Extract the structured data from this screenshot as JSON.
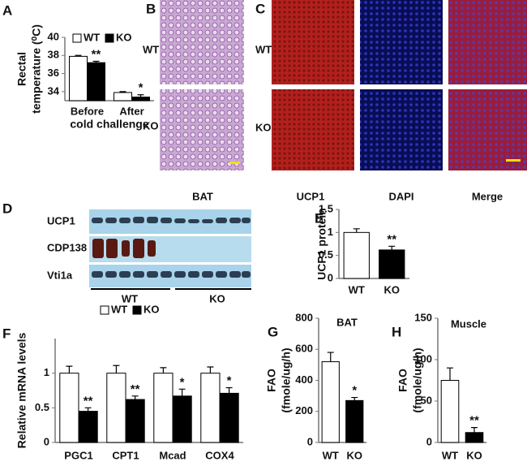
{
  "chart_data": [
    {
      "type": "bar",
      "panel_label": "A",
      "y_label": [
        "Rectal",
        "temperature (⁰C)"
      ],
      "x_label": "cold challenge",
      "categories": [
        "Before",
        "After"
      ],
      "series": [
        {
          "name": "WT",
          "color": "#ffffff",
          "values": [
            37.9,
            33.9
          ],
          "errors": [
            0.1,
            0.1
          ],
          "significance": [
            null,
            null
          ]
        },
        {
          "name": "KO",
          "color": "#000000",
          "values": [
            37.2,
            33.4
          ],
          "errors": [
            0.15,
            0.25
          ],
          "significance": [
            "**",
            "*"
          ]
        }
      ],
      "ylim": [
        33,
        40
      ],
      "yticks": [
        34,
        36,
        38,
        40
      ],
      "legend": true
    },
    {
      "type": "bar",
      "panel_label": "E",
      "y_label": [
        "UCP1 protein"
      ],
      "categories": [
        "WT",
        "KO"
      ],
      "series": [
        {
          "colors": [
            "#ffffff",
            "#000000"
          ],
          "values": [
            1.0,
            0.62
          ],
          "errors": [
            0.08,
            0.08
          ],
          "significance": [
            null,
            "**"
          ]
        }
      ],
      "ylim": [
        0,
        1.5
      ],
      "yticks": [
        0,
        0.5,
        1,
        1.5
      ],
      "legend": false
    },
    {
      "type": "bar",
      "panel_label": "F",
      "y_label": [
        "Relative mRNA levels"
      ],
      "categories": [
        "PGC1",
        "CPT1",
        "Mcad",
        "COX4"
      ],
      "series": [
        {
          "name": "WT",
          "color": "#ffffff",
          "values": [
            1.0,
            1.0,
            1.0,
            1.0
          ],
          "errors": [
            0.1,
            0.11,
            0.08,
            0.09
          ],
          "significance": [
            null,
            null,
            null,
            null
          ]
        },
        {
          "name": "KO",
          "color": "#000000",
          "values": [
            0.45,
            0.62,
            0.67,
            0.71
          ],
          "errors": [
            0.05,
            0.05,
            0.1,
            0.08
          ],
          "significance": [
            "**",
            "**",
            "*",
            "*"
          ]
        }
      ],
      "ylim": [
        0,
        1.5
      ],
      "yticks": [
        0,
        0.5,
        1
      ],
      "legend": true
    },
    {
      "type": "bar",
      "panel_label": "G",
      "title": "BAT",
      "y_label": [
        "FAO",
        "(fmole/ug/h)"
      ],
      "categories": [
        "WT",
        "KO"
      ],
      "series": [
        {
          "colors": [
            "#ffffff",
            "#000000"
          ],
          "values": [
            520,
            270
          ],
          "errors": [
            60,
            20
          ],
          "significance": [
            null,
            "*"
          ]
        }
      ],
      "ylim": [
        0,
        800
      ],
      "yticks": [
        0,
        200,
        400,
        600,
        800
      ],
      "legend": false
    },
    {
      "type": "bar",
      "panel_label": "H",
      "title": "Muscle",
      "y_label": [
        "FAO",
        "(fmole/ug/h)"
      ],
      "categories": [
        "WT",
        "KO"
      ],
      "series": [
        {
          "colors": [
            "#ffffff",
            "#000000"
          ],
          "values": [
            75,
            12
          ],
          "errors": [
            15,
            6
          ],
          "significance": [
            null,
            "**"
          ]
        }
      ],
      "ylim": [
        0,
        150
      ],
      "yticks": [
        0,
        50,
        100,
        150
      ],
      "legend": false
    }
  ],
  "images": {
    "B": {
      "panel_label": "B",
      "rows": [
        "WT",
        "KO"
      ],
      "caption": "BAT"
    },
    "C": {
      "panel_label": "C",
      "rows": [
        "WT",
        "KO"
      ],
      "columns": [
        "UCP1",
        "DAPI",
        "Merge"
      ]
    },
    "D": {
      "panel_label": "D",
      "rows": [
        "UCP1",
        "CDP138",
        "Vti1a"
      ],
      "groups": [
        "WT",
        "KO"
      ]
    }
  }
}
